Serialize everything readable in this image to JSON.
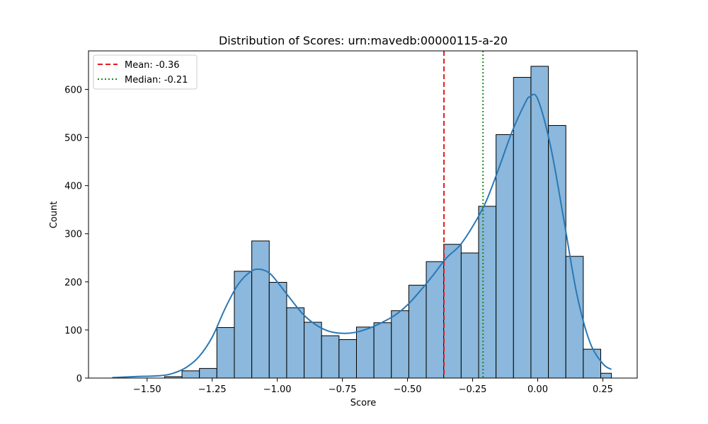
{
  "chart_data": {
    "type": "histogram",
    "title": "Distribution of Scores: urn:mavedb:00000115-a-20",
    "xlabel": "Score",
    "ylabel": "Count",
    "xlim": [
      -1.725,
      0.382
    ],
    "ylim": [
      0,
      680
    ],
    "xticks": [
      -1.5,
      -1.25,
      -1.0,
      -0.75,
      -0.5,
      -0.25,
      0.0,
      0.25
    ],
    "xtick_labels": [
      "−1.50",
      "−1.25",
      "−1.00",
      "−0.75",
      "−0.50",
      "−0.25",
      "0.00",
      "0.25"
    ],
    "yticks": [
      0,
      100,
      200,
      300,
      400,
      500,
      600
    ],
    "ytick_labels": [
      "0",
      "100",
      "200",
      "300",
      "400",
      "500",
      "600"
    ],
    "grid": false,
    "legend_position": "top-left",
    "bin_edges": [
      -1.634,
      -1.567,
      -1.5,
      -1.433,
      -1.366,
      -1.299,
      -1.232,
      -1.165,
      -1.098,
      -1.031,
      -0.964,
      -0.897,
      -0.83,
      -0.763,
      -0.696,
      -0.629,
      -0.562,
      -0.495,
      -0.428,
      -0.361,
      -0.294,
      -0.227,
      -0.16,
      -0.093,
      -0.026,
      0.041,
      0.108,
      0.175,
      0.242,
      0.283
    ],
    "bin_counts": [
      0,
      0,
      0,
      3,
      15,
      20,
      105,
      222,
      285,
      199,
      146,
      116,
      88,
      80,
      106,
      115,
      140,
      193,
      242,
      278,
      260,
      357,
      506,
      625,
      648,
      525,
      253,
      60,
      10
    ],
    "kde": {
      "x": [
        -1.634,
        -1.55,
        -1.45,
        -1.4,
        -1.35,
        -1.3,
        -1.25,
        -1.2,
        -1.15,
        -1.1,
        -1.065,
        -1.03,
        -1.0,
        -0.95,
        -0.9,
        -0.85,
        -0.8,
        -0.75,
        -0.7,
        -0.65,
        -0.6,
        -0.55,
        -0.5,
        -0.45,
        -0.4,
        -0.35,
        -0.3,
        -0.25,
        -0.2,
        -0.15,
        -0.1,
        -0.05,
        -0.03,
        0.0,
        0.05,
        0.1,
        0.15,
        0.2,
        0.25,
        0.283
      ],
      "y": [
        1,
        3,
        5,
        10,
        22,
        45,
        85,
        145,
        195,
        222,
        226,
        218,
        200,
        165,
        132,
        110,
        97,
        93,
        95,
        103,
        115,
        130,
        152,
        182,
        215,
        250,
        275,
        315,
        365,
        435,
        510,
        570,
        585,
        580,
        480,
        330,
        175,
        75,
        30,
        18
      ]
    },
    "series": [
      {
        "name": "Mean: -0.36",
        "kind": "vline",
        "x": -0.36,
        "color": "#e41a1c",
        "style": "dashed"
      },
      {
        "name": "Median: -0.21",
        "kind": "vline",
        "x": -0.21,
        "color": "#1a8c1a",
        "style": "dotted"
      }
    ],
    "colors": {
      "bar_fill": "#8bb8dc",
      "bar_edge": "#000000",
      "kde": "#2a78b5",
      "mean": "#e41a1c",
      "median": "#1a8c1a"
    }
  }
}
